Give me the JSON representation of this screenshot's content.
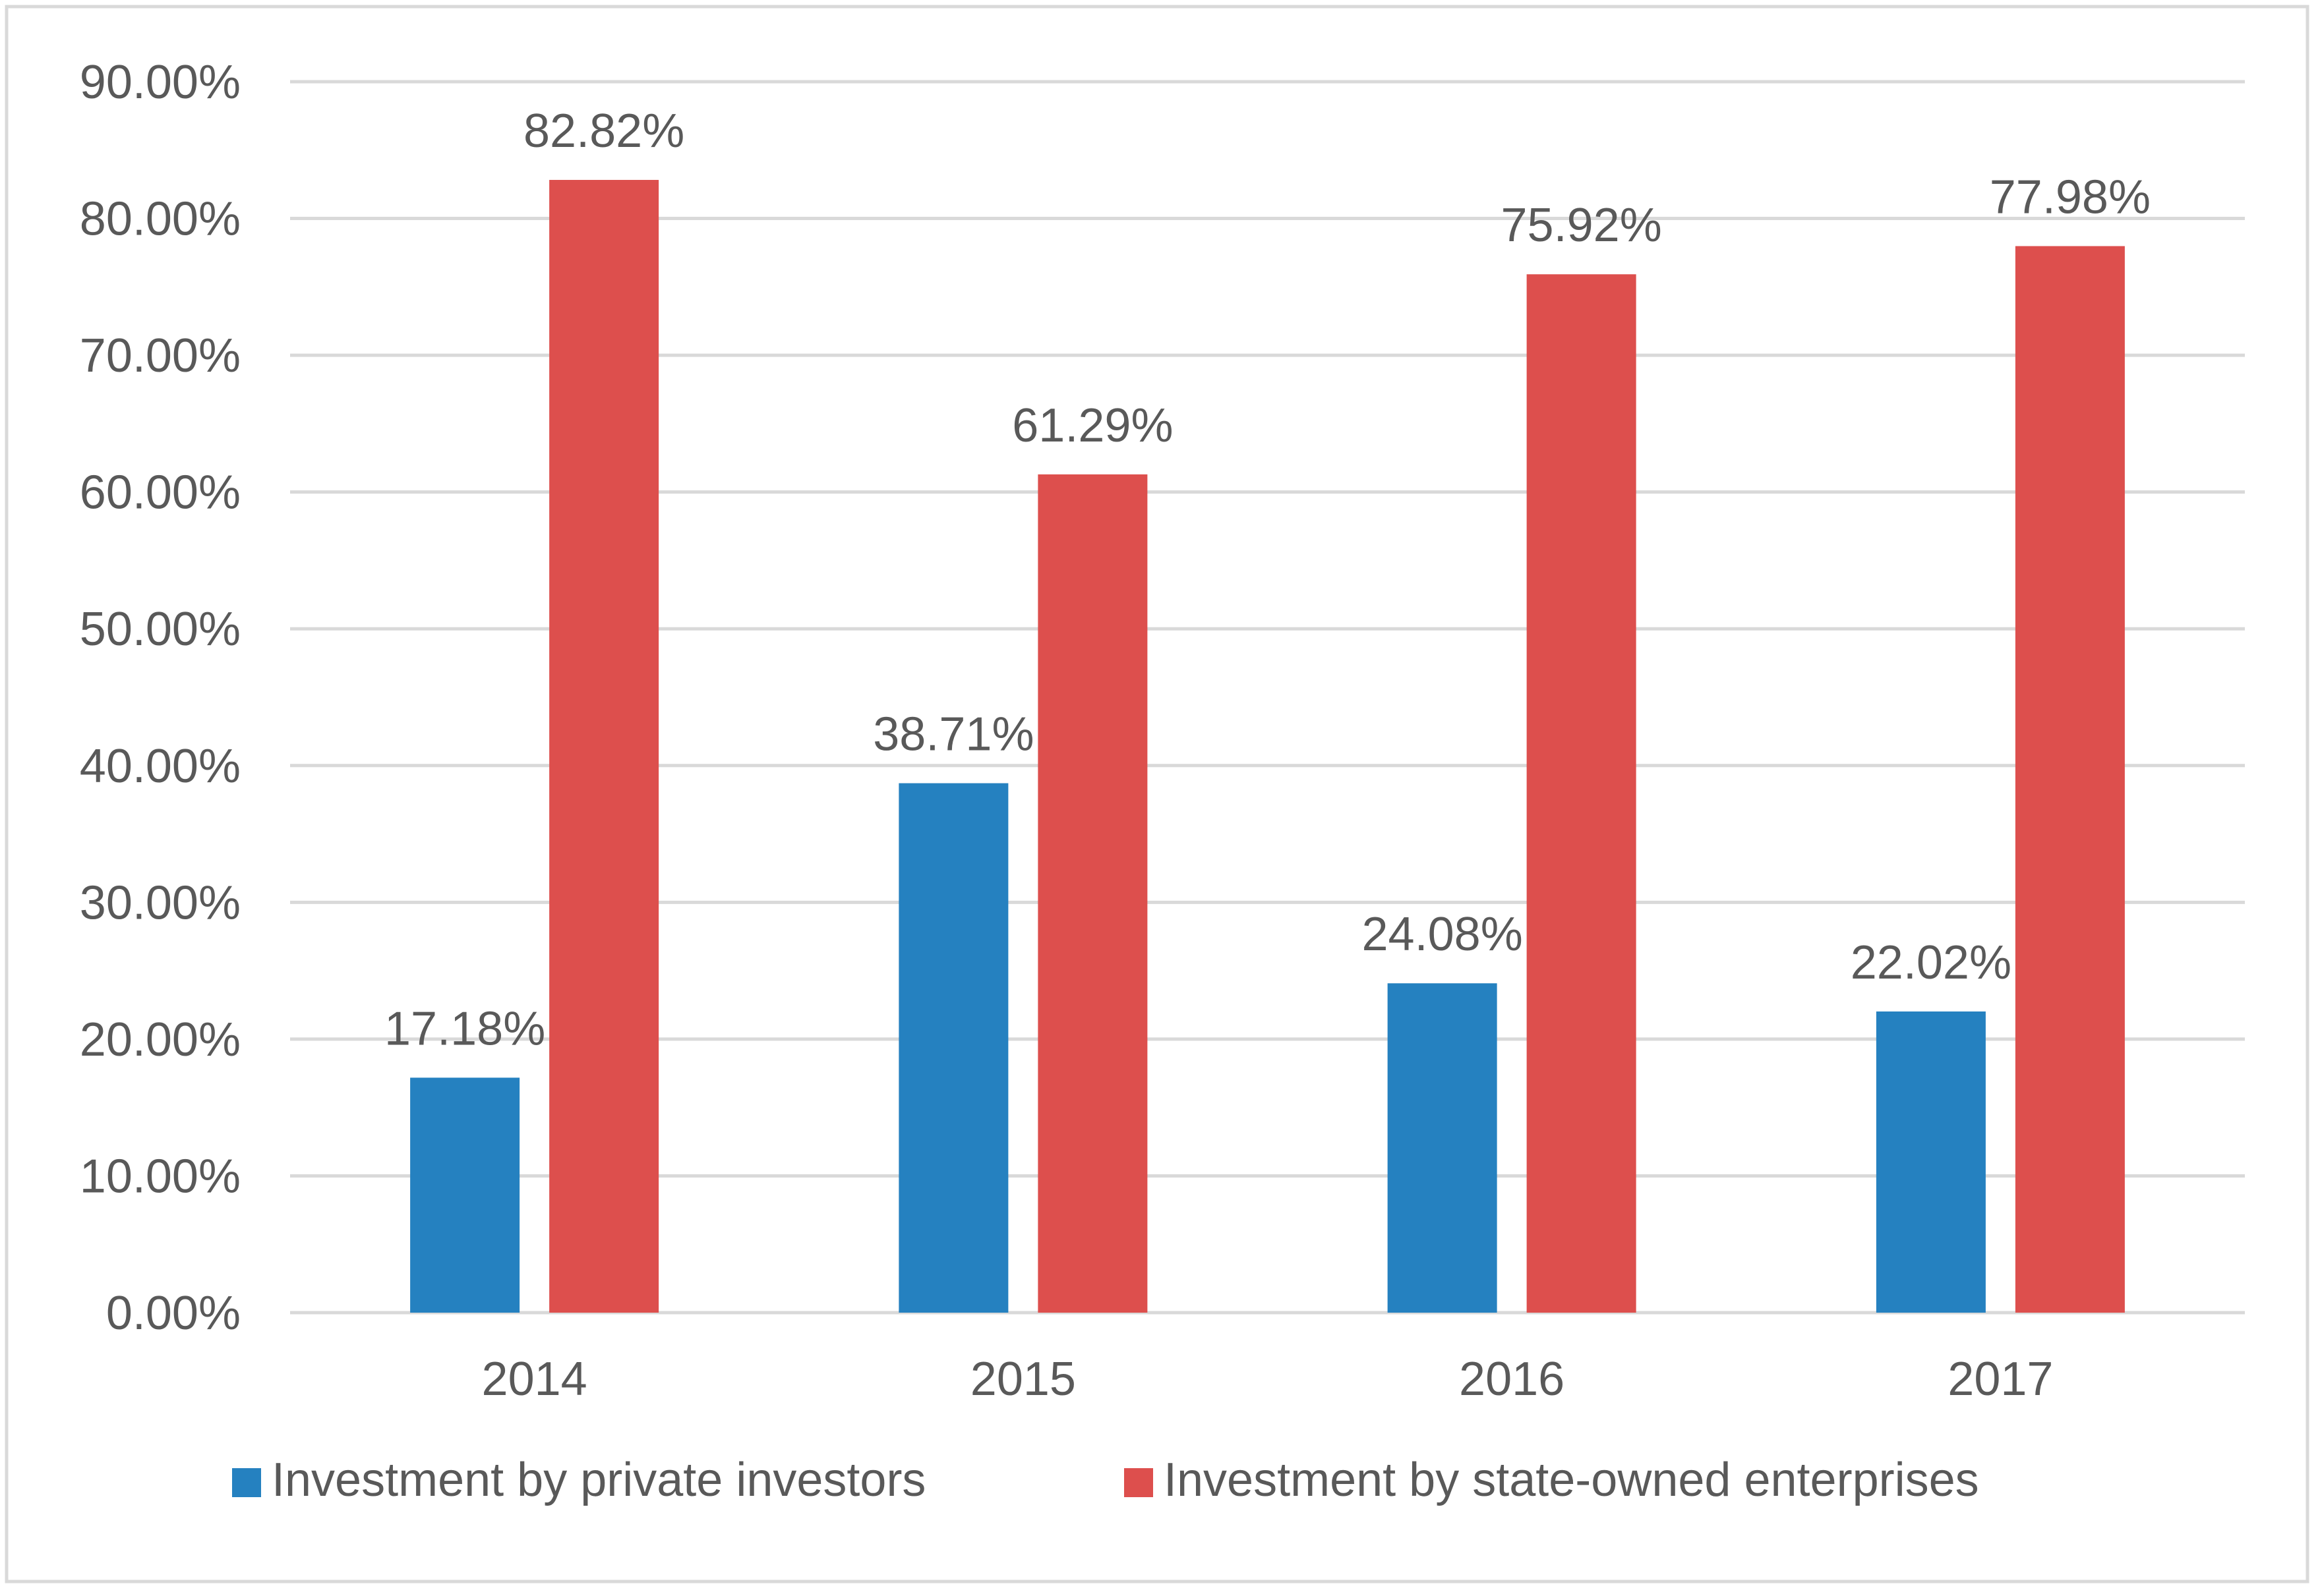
{
  "chart_data": {
    "type": "bar",
    "title": "",
    "xlabel": "",
    "ylabel": "",
    "categories": [
      "2014",
      "2015",
      "2016",
      "2017"
    ],
    "series": [
      {
        "name": "Investment by private investors",
        "color": "#2581c0",
        "values": [
          17.18,
          38.71,
          24.08,
          22.02
        ],
        "labels": [
          "17.18%",
          "38.71%",
          "24.08%",
          "22.02%"
        ]
      },
      {
        "name": "Investment by state-owned enterprises",
        "color": "#dd4f4d",
        "values": [
          82.82,
          61.29,
          75.92,
          77.98
        ],
        "labels": [
          "82.82%",
          "61.29%",
          "75.92%",
          "77.98%"
        ]
      }
    ],
    "ylim": [
      0,
      90
    ],
    "yticks": [
      0,
      10,
      20,
      30,
      40,
      50,
      60,
      70,
      80,
      90
    ],
    "ytick_labels": [
      "0.00%",
      "10.00%",
      "20.00%",
      "30.00%",
      "40.00%",
      "50.00%",
      "60.00%",
      "70.00%",
      "80.00%",
      "90.00%"
    ],
    "grid": true,
    "legend": "bottom"
  }
}
